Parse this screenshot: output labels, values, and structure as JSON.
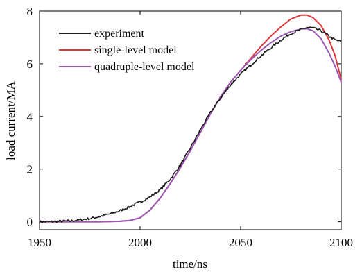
{
  "chart_data": {
    "type": "line",
    "xlabel": "time/ns",
    "ylabel": "load current/MA",
    "xlim": [
      1950,
      2100
    ],
    "ylim": [
      -0.3,
      8
    ],
    "xticks": [
      1950,
      2000,
      2050,
      2100
    ],
    "yticks": [
      0,
      2,
      4,
      6,
      8
    ],
    "xtick_labels": [
      "1950",
      "2000",
      "2050",
      "2100"
    ],
    "ytick_labels": [
      "0",
      "2",
      "4",
      "6",
      "8"
    ],
    "grid": false,
    "legend_position": "top-left",
    "series": [
      {
        "name": "experiment",
        "color": "#1a1a1a",
        "noisy": true,
        "x": [
          1950,
          1955,
          1960,
          1965,
          1970,
          1975,
          1980,
          1985,
          1990,
          1995,
          2000,
          2005,
          2010,
          2015,
          2020,
          2025,
          2030,
          2035,
          2040,
          2045,
          2050,
          2055,
          2060,
          2065,
          2070,
          2075,
          2080,
          2083,
          2086,
          2090,
          2094,
          2097,
          2100
        ],
        "y": [
          0.0,
          0.0,
          0.02,
          0.03,
          0.07,
          0.12,
          0.2,
          0.3,
          0.42,
          0.58,
          0.75,
          0.95,
          1.22,
          1.62,
          2.15,
          2.8,
          3.5,
          4.15,
          4.7,
          5.2,
          5.6,
          5.95,
          6.3,
          6.6,
          6.9,
          7.15,
          7.3,
          7.38,
          7.36,
          7.25,
          7.05,
          6.9,
          6.85
        ]
      },
      {
        "name": "single-level model",
        "color": "#d9383a",
        "noisy": false,
        "x": [
          1950,
          1960,
          1970,
          1980,
          1990,
          1995,
          2000,
          2005,
          2010,
          2015,
          2020,
          2025,
          2030,
          2035,
          2040,
          2045,
          2050,
          2055,
          2060,
          2065,
          2070,
          2075,
          2080,
          2083,
          2086,
          2090,
          2094,
          2097,
          2100
        ],
        "y": [
          0.0,
          0.0,
          0.0,
          0.0,
          0.02,
          0.05,
          0.15,
          0.45,
          0.9,
          1.45,
          2.05,
          2.7,
          3.4,
          4.1,
          4.75,
          5.3,
          5.75,
          6.2,
          6.65,
          7.05,
          7.4,
          7.7,
          7.85,
          7.85,
          7.75,
          7.45,
          6.9,
          6.3,
          5.4
        ]
      },
      {
        "name": "quadruple-level model",
        "color": "#9b59b6",
        "noisy": false,
        "x": [
          1950,
          1960,
          1970,
          1980,
          1990,
          1995,
          2000,
          2005,
          2010,
          2015,
          2020,
          2025,
          2030,
          2035,
          2040,
          2045,
          2050,
          2055,
          2060,
          2065,
          2070,
          2075,
          2080,
          2083,
          2086,
          2090,
          2094,
          2097,
          2100
        ],
        "y": [
          0.0,
          0.0,
          0.0,
          0.0,
          0.02,
          0.05,
          0.15,
          0.45,
          0.9,
          1.45,
          2.05,
          2.7,
          3.4,
          4.1,
          4.75,
          5.3,
          5.75,
          6.15,
          6.5,
          6.8,
          7.05,
          7.22,
          7.32,
          7.33,
          7.25,
          6.95,
          6.4,
          5.9,
          5.3
        ]
      }
    ]
  }
}
